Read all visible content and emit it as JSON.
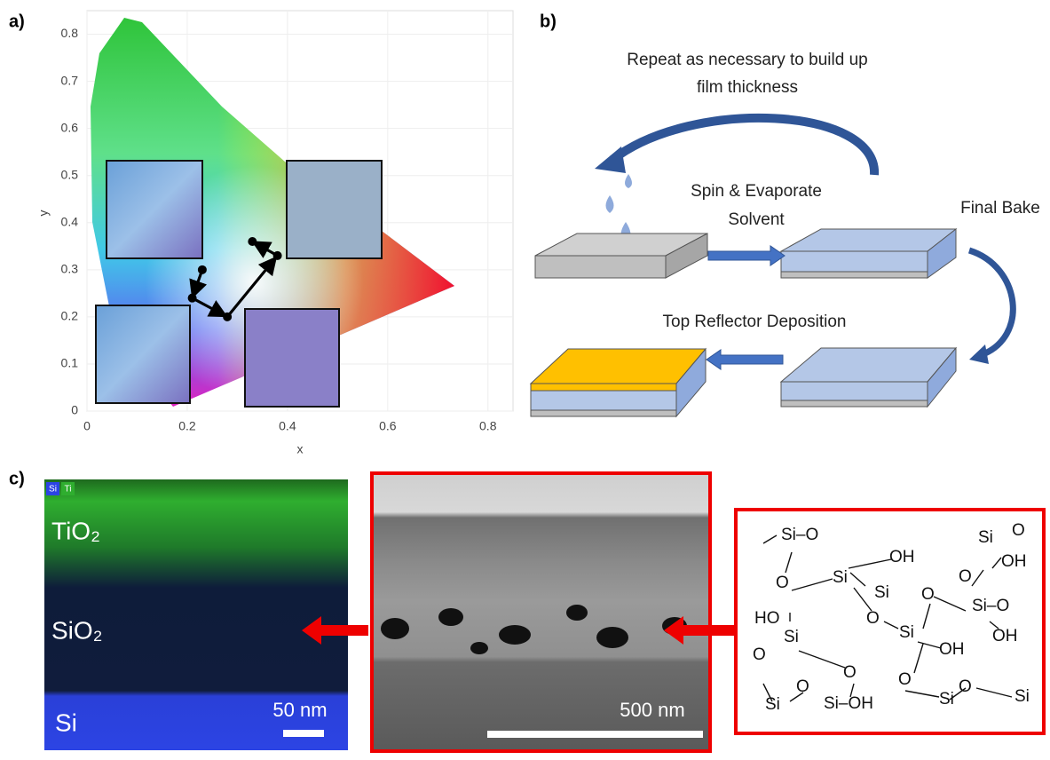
{
  "chart_data": {
    "type": "line",
    "xlabel": "x",
    "ylabel": "y",
    "x": [
      0.23,
      0.21,
      0.28,
      0.38,
      0.33
    ],
    "values": [
      0.3,
      0.24,
      0.2,
      0.33,
      0.36
    ],
    "color": "#000000",
    "xlim": [
      0,
      0.85
    ],
    "ylim": [
      0,
      0.85
    ],
    "xticks": [
      0,
      0.2,
      0.4,
      0.6,
      0.8
    ],
    "yticks": [
      0,
      0.1,
      0.2,
      0.3,
      0.4,
      0.5,
      0.6,
      0.7,
      0.8
    ],
    "grid": true
  },
  "panels": {
    "a": "a)",
    "b": "b)",
    "c": "c)"
  },
  "process": {
    "repeat": [
      "Repeat as necessary to build up",
      "film thickness"
    ],
    "spin": [
      "Spin & Evaporate",
      "Solvent"
    ],
    "bake": "Final Bake",
    "reflector": "Top Reflector Deposition"
  },
  "eds": {
    "legend": [
      "Si",
      "Ti"
    ],
    "layers": [
      "TiO₂",
      "SiO₂",
      "Si"
    ],
    "scale": "50 nm"
  },
  "sem": {
    "scale": "500 nm"
  },
  "structure": {
    "labels": [
      "Si–O",
      "OH",
      "Si",
      "O",
      "Si",
      "OH",
      "O",
      "O",
      "Si–O",
      "HO",
      "O",
      "Si",
      "Si",
      "OH",
      "OH",
      "O",
      "O",
      "O",
      "O",
      "Si",
      "Si–OH",
      "Si",
      "O",
      "Si",
      "O",
      "Si"
    ]
  }
}
